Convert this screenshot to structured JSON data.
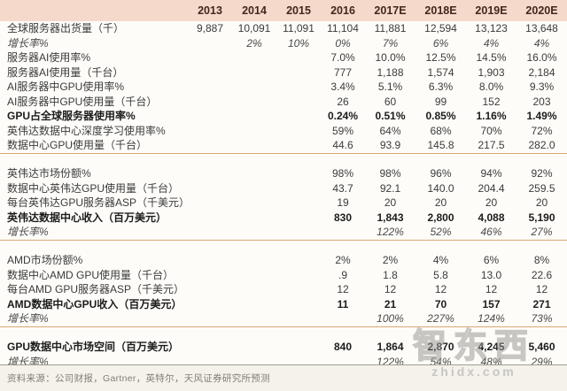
{
  "table": {
    "columns": [
      "",
      "2013",
      "2014",
      "2015",
      "2016",
      "2017E",
      "2018E",
      "2019E",
      "2020E"
    ],
    "rows": [
      {
        "label": "全球服务器出货量（千）",
        "style": "normal",
        "values": [
          "9,887",
          "10,091",
          "11,091",
          "11,104",
          "11,881",
          "12,594",
          "13,123",
          "13,648"
        ],
        "divider_after": false,
        "spacer_after": false
      },
      {
        "label": "增长率%",
        "style": "italic",
        "values": [
          "",
          "2%",
          "10%",
          "0%",
          "7%",
          "6%",
          "4%",
          "4%"
        ],
        "divider_after": false,
        "spacer_after": false
      },
      {
        "label": "服务器AI使用率%",
        "style": "normal",
        "values": [
          "",
          "",
          "",
          "7.0%",
          "10.0%",
          "12.5%",
          "14.5%",
          "16.0%"
        ],
        "divider_after": false,
        "spacer_after": false
      },
      {
        "label": "服务器AI使用量（千台）",
        "style": "normal",
        "values": [
          "",
          "",
          "",
          "777",
          "1,188",
          "1,574",
          "1,903",
          "2,184"
        ],
        "divider_after": false,
        "spacer_after": false
      },
      {
        "label": "AI服务器中GPU使用率%",
        "style": "normal",
        "values": [
          "",
          "",
          "",
          "3.4%",
          "5.1%",
          "6.3%",
          "8.0%",
          "9.3%"
        ],
        "divider_after": false,
        "spacer_after": false
      },
      {
        "label": "AI服务器中GPU使用量（千台）",
        "style": "normal",
        "values": [
          "",
          "",
          "",
          "26",
          "60",
          "99",
          "152",
          "203"
        ],
        "divider_after": false,
        "spacer_after": false
      },
      {
        "label": "GPU占全球服务器使用率%",
        "style": "bold",
        "values": [
          "",
          "",
          "",
          "0.24%",
          "0.51%",
          "0.85%",
          "1.16%",
          "1.49%"
        ],
        "divider_after": false,
        "spacer_after": false
      },
      {
        "label": "英伟达数据中心深度学习使用率%",
        "style": "normal",
        "values": [
          "",
          "",
          "",
          "59%",
          "64%",
          "68%",
          "70%",
          "72%"
        ],
        "divider_after": false,
        "spacer_after": false
      },
      {
        "label": "数据中心GPU使用量（千台）",
        "style": "normal",
        "values": [
          "",
          "",
          "",
          "44.6",
          "93.9",
          "145.8",
          "217.5",
          "282.0"
        ],
        "divider_after": true,
        "spacer_after": true
      },
      {
        "label": "英伟达市场份额%",
        "style": "normal",
        "values": [
          "",
          "",
          "",
          "98%",
          "98%",
          "96%",
          "94%",
          "92%"
        ],
        "divider_after": false,
        "spacer_after": false
      },
      {
        "label": "数据中心英伟达GPU使用量（千台）",
        "style": "normal",
        "values": [
          "",
          "",
          "",
          "43.7",
          "92.1",
          "140.0",
          "204.4",
          "259.5"
        ],
        "divider_after": false,
        "spacer_after": false
      },
      {
        "label": "每台英伟达GPU服务器ASP（千美元）",
        "style": "normal",
        "values": [
          "",
          "",
          "",
          "19",
          "20",
          "20",
          "20",
          "20"
        ],
        "divider_after": false,
        "spacer_after": false
      },
      {
        "label": "英伟达数据中心收入（百万美元）",
        "style": "bold",
        "values": [
          "",
          "",
          "",
          "830",
          "1,843",
          "2,800",
          "4,088",
          "5,190"
        ],
        "divider_after": false,
        "spacer_after": false
      },
      {
        "label": "增长率%",
        "style": "italic",
        "values": [
          "",
          "",
          "",
          "",
          "122%",
          "52%",
          "46%",
          "27%"
        ],
        "divider_after": true,
        "spacer_after": true
      },
      {
        "label": "AMD市场份额%",
        "style": "normal",
        "values": [
          "",
          "",
          "",
          "2%",
          "2%",
          "4%",
          "6%",
          "8%"
        ],
        "divider_after": false,
        "spacer_after": false
      },
      {
        "label": "数据中心AMD GPU使用量（千台）",
        "style": "normal",
        "values": [
          "",
          "",
          "",
          ".9",
          "1.8",
          "5.8",
          "13.0",
          "22.6"
        ],
        "divider_after": false,
        "spacer_after": false
      },
      {
        "label": "每台AMD GPU服务器ASP（千美元）",
        "style": "normal",
        "values": [
          "",
          "",
          "",
          "12",
          "12",
          "12",
          "12",
          "12"
        ],
        "divider_after": false,
        "spacer_after": false
      },
      {
        "label": "AMD数据中心GPU收入（百万美元）",
        "style": "bold",
        "values": [
          "",
          "",
          "",
          "11",
          "21",
          "70",
          "157",
          "271"
        ],
        "divider_after": false,
        "spacer_after": false
      },
      {
        "label": "增长率%",
        "style": "italic",
        "values": [
          "",
          "",
          "",
          "",
          "100%",
          "227%",
          "124%",
          "73%"
        ],
        "divider_after": true,
        "spacer_after": true
      },
      {
        "label": "GPU数据中心市场空间（百万美元）",
        "style": "bold",
        "values": [
          "",
          "",
          "",
          "840",
          "1,864",
          "2,870",
          "4,245",
          "5,460"
        ],
        "divider_after": false,
        "spacer_after": false
      },
      {
        "label": "增长率%",
        "style": "italic",
        "values": [
          "",
          "",
          "",
          "",
          "122%",
          "54%",
          "48%",
          "29%"
        ],
        "divider_after": false,
        "spacer_after": false
      }
    ]
  },
  "footer": {
    "source": "资料来源：公司财报，Gartner，英特尔，天风证券研究所预测"
  },
  "watermark": {
    "text": "智东西",
    "domain": "zhidx.com"
  },
  "colors": {
    "header_bg": "#f5dacb",
    "header_text": "#40281b",
    "divider_line": "#d9a871",
    "footer_line": "#a59c8c",
    "body_text": "#3b3b3b"
  }
}
